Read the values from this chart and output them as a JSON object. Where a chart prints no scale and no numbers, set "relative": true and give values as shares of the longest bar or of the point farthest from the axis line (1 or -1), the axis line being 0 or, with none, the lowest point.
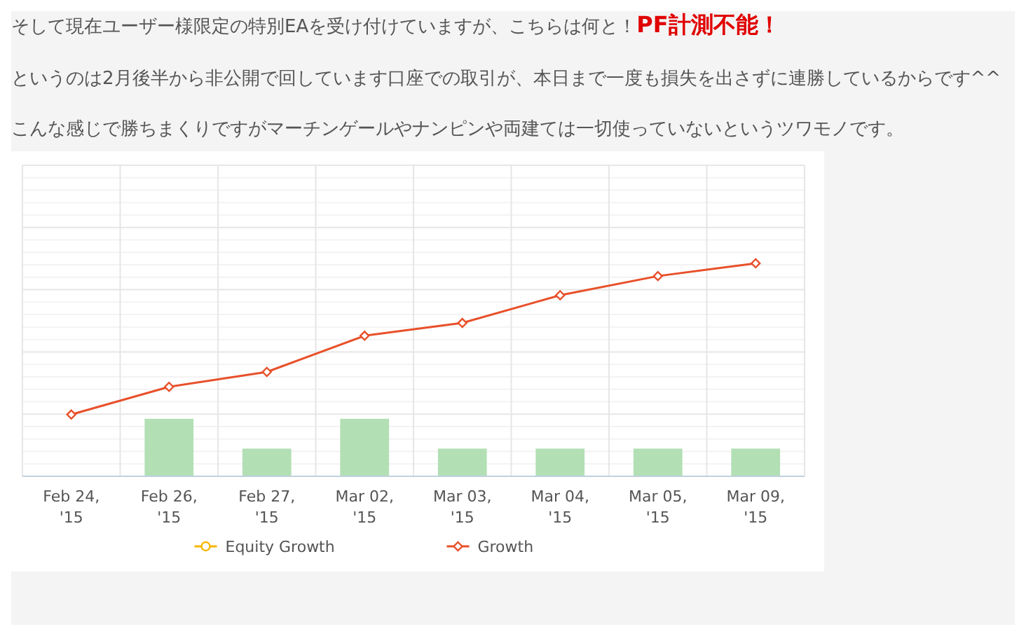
{
  "chart_data": {
    "type": "bar",
    "title": "そして現在ユーザー様限定の特別EAを受け付けていますが、こちらは何と！",
    "subtitle": "PF計測不能！",
    "annotations": [
      "というのは2月後半から非公開で回しています口座での取引が、本日まで一度も損失を出さずに連勝しているからです^^",
      "こんな感じで勝ちまくりですがマーチンゲールやナンピンや両建ては一切使っていないというツワモノです。"
    ],
    "categories": [
      "Feb 24, '15",
      "Feb 26, '15",
      "Feb 27, '15",
      "Mar 02, '15",
      "Mar 03, '15",
      "Mar 04, '15",
      "Mar 05, '15",
      "Mar 09, '15"
    ],
    "relative": true,
    "grid": true,
    "legend": "bottom",
    "marker": "diamond",
    "series": [
      {
        "color": "#b2dfb4",
        "values": [
          0,
          0.27,
          0.13,
          0.27,
          0.13,
          0.13,
          0.13,
          0.13
        ]
      },
      {
        "type": "line",
        "name": "Equity Growth",
        "color": "#f5b800",
        "marker": "circle",
        "values": [
          null,
          null,
          null,
          null,
          null,
          null,
          null,
          null
        ]
      },
      {
        "type": "line",
        "name": "Growth",
        "color": "#e8502a",
        "values": [
          0.29,
          0.42,
          0.49,
          0.66,
          0.72,
          0.85,
          0.94,
          1
        ]
      }
    ]
  }
}
